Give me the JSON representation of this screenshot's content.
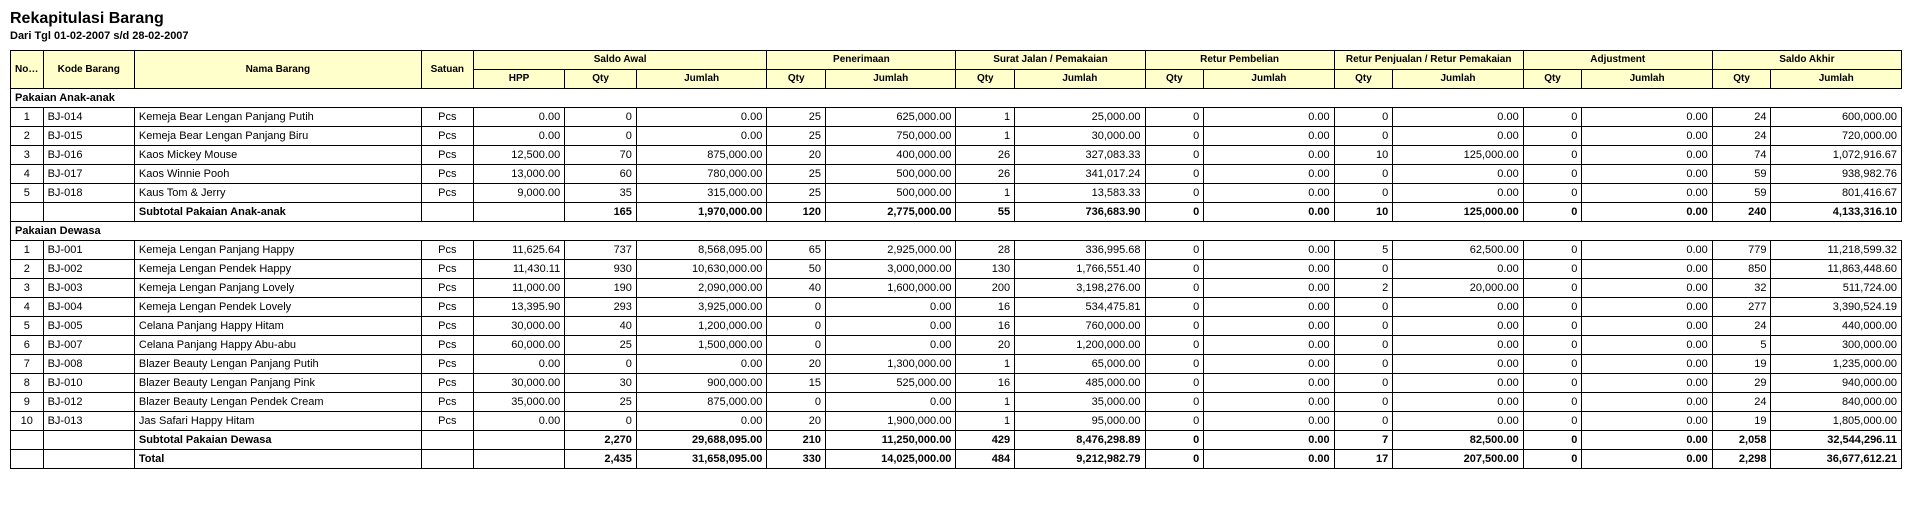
{
  "title": "Rekapitulasi Barang",
  "subtitle": "Dari Tgl 01-02-2007 s/d 28-02-2007",
  "headers": {
    "no": "No. Urut",
    "kode": "Kode Barang",
    "nama": "Nama Barang",
    "satuan": "Satuan",
    "saldo_awal": "Saldo Awal",
    "penerimaan": "Penerimaan",
    "surat_jalan": "Surat Jalan / Pemakaian",
    "retur_pembelian": "Retur Pembelian",
    "retur_penjualan": "Retur Penjualan / Retur Pemakaian",
    "adjustment": "Adjustment",
    "saldo_akhir": "Saldo Akhir",
    "hpp": "HPP",
    "qty": "Qty",
    "jumlah": "Jumlah"
  },
  "groups": [
    {
      "name": "Pakaian Anak-anak",
      "subtotal_label": "Subtotal Pakaian Anak-anak",
      "rows": [
        {
          "no": "1",
          "kode": "BJ-014",
          "nama": "Kemeja Bear Lengan Panjang Putih",
          "sat": "Pcs",
          "hpp": "0.00",
          "sa_q": "0",
          "sa_j": "0.00",
          "pn_q": "25",
          "pn_j": "625,000.00",
          "sj_q": "1",
          "sj_j": "25,000.00",
          "rb_q": "0",
          "rb_j": "0.00",
          "rp_q": "0",
          "rp_j": "0.00",
          "ad_q": "0",
          "ad_j": "0.00",
          "ak_q": "24",
          "ak_j": "600,000.00"
        },
        {
          "no": "2",
          "kode": "BJ-015",
          "nama": "Kemeja Bear Lengan Panjang Biru",
          "sat": "Pcs",
          "hpp": "0.00",
          "sa_q": "0",
          "sa_j": "0.00",
          "pn_q": "25",
          "pn_j": "750,000.00",
          "sj_q": "1",
          "sj_j": "30,000.00",
          "rb_q": "0",
          "rb_j": "0.00",
          "rp_q": "0",
          "rp_j": "0.00",
          "ad_q": "0",
          "ad_j": "0.00",
          "ak_q": "24",
          "ak_j": "720,000.00"
        },
        {
          "no": "3",
          "kode": "BJ-016",
          "nama": "Kaos Mickey Mouse",
          "sat": "Pcs",
          "hpp": "12,500.00",
          "sa_q": "70",
          "sa_j": "875,000.00",
          "pn_q": "20",
          "pn_j": "400,000.00",
          "sj_q": "26",
          "sj_j": "327,083.33",
          "rb_q": "0",
          "rb_j": "0.00",
          "rp_q": "10",
          "rp_j": "125,000.00",
          "ad_q": "0",
          "ad_j": "0.00",
          "ak_q": "74",
          "ak_j": "1,072,916.67"
        },
        {
          "no": "4",
          "kode": "BJ-017",
          "nama": "Kaos Winnie Pooh",
          "sat": "Pcs",
          "hpp": "13,000.00",
          "sa_q": "60",
          "sa_j": "780,000.00",
          "pn_q": "25",
          "pn_j": "500,000.00",
          "sj_q": "26",
          "sj_j": "341,017.24",
          "rb_q": "0",
          "rb_j": "0.00",
          "rp_q": "0",
          "rp_j": "0.00",
          "ad_q": "0",
          "ad_j": "0.00",
          "ak_q": "59",
          "ak_j": "938,982.76"
        },
        {
          "no": "5",
          "kode": "BJ-018",
          "nama": "Kaus Tom & Jerry",
          "sat": "Pcs",
          "hpp": "9,000.00",
          "sa_q": "35",
          "sa_j": "315,000.00",
          "pn_q": "25",
          "pn_j": "500,000.00",
          "sj_q": "1",
          "sj_j": "13,583.33",
          "rb_q": "0",
          "rb_j": "0.00",
          "rp_q": "0",
          "rp_j": "0.00",
          "ad_q": "0",
          "ad_j": "0.00",
          "ak_q": "59",
          "ak_j": "801,416.67"
        }
      ],
      "subtotal": {
        "sa_q": "165",
        "sa_j": "1,970,000.00",
        "pn_q": "120",
        "pn_j": "2,775,000.00",
        "sj_q": "55",
        "sj_j": "736,683.90",
        "rb_q": "0",
        "rb_j": "0.00",
        "rp_q": "10",
        "rp_j": "125,000.00",
        "ad_q": "0",
        "ad_j": "0.00",
        "ak_q": "240",
        "ak_j": "4,133,316.10"
      }
    },
    {
      "name": "Pakaian Dewasa",
      "subtotal_label": "Subtotal Pakaian Dewasa",
      "rows": [
        {
          "no": "1",
          "kode": "BJ-001",
          "nama": "Kemeja Lengan Panjang Happy",
          "sat": "Pcs",
          "hpp": "11,625.64",
          "sa_q": "737",
          "sa_j": "8,568,095.00",
          "pn_q": "65",
          "pn_j": "2,925,000.00",
          "sj_q": "28",
          "sj_j": "336,995.68",
          "rb_q": "0",
          "rb_j": "0.00",
          "rp_q": "5",
          "rp_j": "62,500.00",
          "ad_q": "0",
          "ad_j": "0.00",
          "ak_q": "779",
          "ak_j": "11,218,599.32"
        },
        {
          "no": "2",
          "kode": "BJ-002",
          "nama": "Kemeja Lengan Pendek Happy",
          "sat": "Pcs",
          "hpp": "11,430.11",
          "sa_q": "930",
          "sa_j": "10,630,000.00",
          "pn_q": "50",
          "pn_j": "3,000,000.00",
          "sj_q": "130",
          "sj_j": "1,766,551.40",
          "rb_q": "0",
          "rb_j": "0.00",
          "rp_q": "0",
          "rp_j": "0.00",
          "ad_q": "0",
          "ad_j": "0.00",
          "ak_q": "850",
          "ak_j": "11,863,448.60"
        },
        {
          "no": "3",
          "kode": "BJ-003",
          "nama": "Kemeja Lengan Panjang Lovely",
          "sat": "Pcs",
          "hpp": "11,000.00",
          "sa_q": "190",
          "sa_j": "2,090,000.00",
          "pn_q": "40",
          "pn_j": "1,600,000.00",
          "sj_q": "200",
          "sj_j": "3,198,276.00",
          "rb_q": "0",
          "rb_j": "0.00",
          "rp_q": "2",
          "rp_j": "20,000.00",
          "ad_q": "0",
          "ad_j": "0.00",
          "ak_q": "32",
          "ak_j": "511,724.00"
        },
        {
          "no": "4",
          "kode": "BJ-004",
          "nama": "Kemeja Lengan Pendek Lovely",
          "sat": "Pcs",
          "hpp": "13,395.90",
          "sa_q": "293",
          "sa_j": "3,925,000.00",
          "pn_q": "0",
          "pn_j": "0.00",
          "sj_q": "16",
          "sj_j": "534,475.81",
          "rb_q": "0",
          "rb_j": "0.00",
          "rp_q": "0",
          "rp_j": "0.00",
          "ad_q": "0",
          "ad_j": "0.00",
          "ak_q": "277",
          "ak_j": "3,390,524.19"
        },
        {
          "no": "5",
          "kode": "BJ-005",
          "nama": "Celana Panjang Happy Hitam",
          "sat": "Pcs",
          "hpp": "30,000.00",
          "sa_q": "40",
          "sa_j": "1,200,000.00",
          "pn_q": "0",
          "pn_j": "0.00",
          "sj_q": "16",
          "sj_j": "760,000.00",
          "rb_q": "0",
          "rb_j": "0.00",
          "rp_q": "0",
          "rp_j": "0.00",
          "ad_q": "0",
          "ad_j": "0.00",
          "ak_q": "24",
          "ak_j": "440,000.00"
        },
        {
          "no": "6",
          "kode": "BJ-007",
          "nama": "Celana Panjang Happy Abu-abu",
          "sat": "Pcs",
          "hpp": "60,000.00",
          "sa_q": "25",
          "sa_j": "1,500,000.00",
          "pn_q": "0",
          "pn_j": "0.00",
          "sj_q": "20",
          "sj_j": "1,200,000.00",
          "rb_q": "0",
          "rb_j": "0.00",
          "rp_q": "0",
          "rp_j": "0.00",
          "ad_q": "0",
          "ad_j": "0.00",
          "ak_q": "5",
          "ak_j": "300,000.00"
        },
        {
          "no": "7",
          "kode": "BJ-008",
          "nama": "Blazer Beauty Lengan Panjang Putih",
          "sat": "Pcs",
          "hpp": "0.00",
          "sa_q": "0",
          "sa_j": "0.00",
          "pn_q": "20",
          "pn_j": "1,300,000.00",
          "sj_q": "1",
          "sj_j": "65,000.00",
          "rb_q": "0",
          "rb_j": "0.00",
          "rp_q": "0",
          "rp_j": "0.00",
          "ad_q": "0",
          "ad_j": "0.00",
          "ak_q": "19",
          "ak_j": "1,235,000.00"
        },
        {
          "no": "8",
          "kode": "BJ-010",
          "nama": "Blazer Beauty Lengan Panjang Pink",
          "sat": "Pcs",
          "hpp": "30,000.00",
          "sa_q": "30",
          "sa_j": "900,000.00",
          "pn_q": "15",
          "pn_j": "525,000.00",
          "sj_q": "16",
          "sj_j": "485,000.00",
          "rb_q": "0",
          "rb_j": "0.00",
          "rp_q": "0",
          "rp_j": "0.00",
          "ad_q": "0",
          "ad_j": "0.00",
          "ak_q": "29",
          "ak_j": "940,000.00"
        },
        {
          "no": "9",
          "kode": "BJ-012",
          "nama": "Blazer Beauty Lengan Pendek Cream",
          "sat": "Pcs",
          "hpp": "35,000.00",
          "sa_q": "25",
          "sa_j": "875,000.00",
          "pn_q": "0",
          "pn_j": "0.00",
          "sj_q": "1",
          "sj_j": "35,000.00",
          "rb_q": "0",
          "rb_j": "0.00",
          "rp_q": "0",
          "rp_j": "0.00",
          "ad_q": "0",
          "ad_j": "0.00",
          "ak_q": "24",
          "ak_j": "840,000.00"
        },
        {
          "no": "10",
          "kode": "BJ-013",
          "nama": "Jas Safari Happy Hitam",
          "sat": "Pcs",
          "hpp": "0.00",
          "sa_q": "0",
          "sa_j": "0.00",
          "pn_q": "20",
          "pn_j": "1,900,000.00",
          "sj_q": "1",
          "sj_j": "95,000.00",
          "rb_q": "0",
          "rb_j": "0.00",
          "rp_q": "0",
          "rp_j": "0.00",
          "ad_q": "0",
          "ad_j": "0.00",
          "ak_q": "19",
          "ak_j": "1,805,000.00"
        }
      ],
      "subtotal": {
        "sa_q": "2,270",
        "sa_j": "29,688,095.00",
        "pn_q": "210",
        "pn_j": "11,250,000.00",
        "sj_q": "429",
        "sj_j": "8,476,298.89",
        "rb_q": "0",
        "rb_j": "0.00",
        "rp_q": "7",
        "rp_j": "82,500.00",
        "ad_q": "0",
        "ad_j": "0.00",
        "ak_q": "2,058",
        "ak_j": "32,544,296.11"
      }
    }
  ],
  "total_label": "Total",
  "total": {
    "sa_q": "2,435",
    "sa_j": "31,658,095.00",
    "pn_q": "330",
    "pn_j": "14,025,000.00",
    "sj_q": "484",
    "sj_j": "9,212,982.79",
    "rb_q": "0",
    "rb_j": "0.00",
    "rp_q": "17",
    "rp_j": "207,500.00",
    "ad_q": "0",
    "ad_j": "0.00",
    "ak_q": "2,298",
    "ak_j": "36,677,612.21"
  }
}
